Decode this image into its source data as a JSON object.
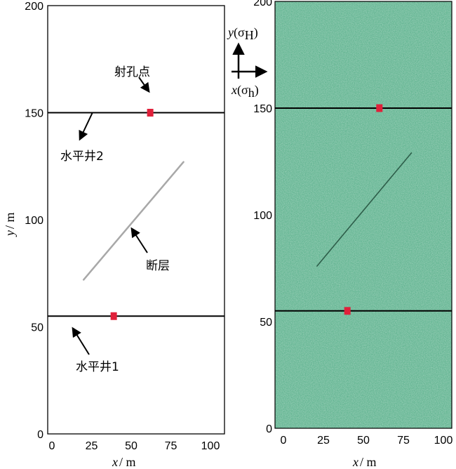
{
  "colors": {
    "rock": "#5fb38f",
    "well": "#000000",
    "perforation": "#e0203a",
    "fault_left": "#a8a8a8",
    "fault_right": "#2e5e4a"
  },
  "axes": {
    "xlabel_var": "x",
    "xlabel_unit": "/ m",
    "ylabel_var": "y",
    "ylabel_unit": "/ m",
    "x_ticks": [
      "0",
      "25",
      "50",
      "75",
      "100"
    ],
    "y_ticks": [
      "0",
      "50",
      "100",
      "150",
      "200"
    ],
    "x_range": [
      0,
      100
    ],
    "y_range": [
      0,
      200
    ]
  },
  "legend": {
    "y_var": "y",
    "y_sigma": "(σ",
    "y_sub": "H",
    "y_close": ")",
    "x_var": "x",
    "x_sigma": "(σ",
    "x_sub": "h",
    "x_close": ")"
  },
  "model": {
    "well1_y": 55,
    "well2_y": 150,
    "perf1": {
      "x": 39,
      "y": 55
    },
    "perf2": {
      "x": 62,
      "y": 150
    },
    "fault_start": {
      "x": 20,
      "y": 72
    },
    "fault_end": {
      "x": 83,
      "y": 127
    }
  },
  "model_right": {
    "perf1": {
      "x": 40,
      "y": 55
    },
    "perf2": {
      "x": 60,
      "y": 150
    },
    "fault_start": {
      "x": 21,
      "y": 76
    },
    "fault_end": {
      "x": 80,
      "y": 129
    }
  },
  "labels": {
    "perforation": "射孔点",
    "well2": "水平井2",
    "fault": "断层",
    "well1": "水平井1"
  }
}
